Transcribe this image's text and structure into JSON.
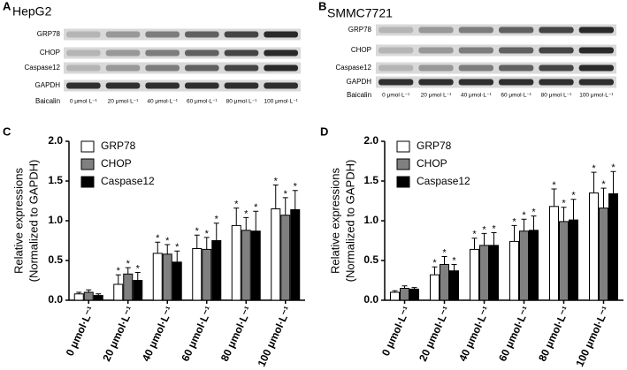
{
  "blots": [
    {
      "panel": "A",
      "cell_line": "HepG2",
      "proteins": [
        "GRP78",
        "CHOP",
        "Caspase12",
        "GAPDH"
      ],
      "treatment": "Baicalin",
      "doses": [
        "0 μmol·L⁻¹",
        "20 μmol·L⁻¹",
        "40 μmol·L⁻¹",
        "60 μmol·L⁻¹",
        "80 μmol·L⁻¹",
        "100 μmol·L⁻¹"
      ]
    },
    {
      "panel": "B",
      "cell_line": "SMMC7721",
      "proteins": [
        "GRP78",
        "CHOP",
        "Caspase12",
        "GAPDH"
      ],
      "treatment": "Baicalin",
      "doses": [
        "0 μmol·L⁻¹",
        "20 μmol·L⁻¹",
        "40 μmol·L⁻¹",
        "60 μmol·L⁻¹",
        "80 μmol·L⁻¹",
        "100 μmol·L⁻¹"
      ]
    }
  ],
  "chart_data": [
    {
      "type": "bar",
      "panel": "C",
      "ylabel": [
        "Relative expressions",
        "(Normalized to GAPDH)"
      ],
      "categories": [
        "0 μmol·L⁻¹",
        "20 μmol·L⁻¹",
        "40 μmol·L⁻¹",
        "60 μmol·L⁻¹",
        "80 μmol·L⁻¹",
        "100 μmol·L⁻¹"
      ],
      "ylim": [
        0,
        2
      ],
      "yticks": [
        {
          "value": 0,
          "label": "0.0"
        },
        0.5,
        {
          "value": 1,
          "label": "1.0"
        },
        1.5,
        {
          "value": 2,
          "label": "2.0"
        }
      ],
      "legend": "upper left",
      "series": [
        {
          "name": "GRP78",
          "color": "#ffffff",
          "values": [
            0.08,
            0.2,
            0.59,
            0.65,
            0.94,
            1.15
          ],
          "errors": [
            0.02,
            0.12,
            0.14,
            0.17,
            0.22,
            0.3
          ],
          "significance": [
            null,
            "*",
            "*",
            "*",
            "*",
            "*"
          ]
        },
        {
          "name": "CHOP",
          "color": "#808080",
          "values": [
            0.1,
            0.33,
            0.58,
            0.64,
            0.88,
            1.07
          ],
          "errors": [
            0.03,
            0.08,
            0.12,
            0.15,
            0.16,
            0.22
          ],
          "significance": [
            null,
            "*",
            "*",
            "*",
            "*",
            "*"
          ]
        },
        {
          "name": "Caspase12",
          "color": "#000000",
          "values": [
            0.06,
            0.25,
            0.48,
            0.75,
            0.87,
            1.14
          ],
          "errors": [
            0.02,
            0.1,
            0.14,
            0.22,
            0.25,
            0.24
          ],
          "significance": [
            null,
            "*",
            "*",
            "*",
            "*",
            "*"
          ]
        }
      ]
    },
    {
      "type": "bar",
      "panel": "D",
      "ylabel": [
        "Relative expressions",
        "(Normalized to GAPDH)"
      ],
      "categories": [
        "0 μmol·L⁻¹",
        "20 μmol·L⁻¹",
        "40 μmol·L⁻¹",
        "60 μmol·L⁻¹",
        "80 μmol·L⁻¹",
        "100 μmol·L⁻¹"
      ],
      "ylim": [
        0,
        2
      ],
      "yticks": [
        {
          "value": 0,
          "label": "0.0"
        },
        0.5,
        {
          "value": 1,
          "label": "1.0"
        },
        1.5,
        {
          "value": 2,
          "label": "2.0"
        }
      ],
      "legend": "upper left",
      "series": [
        {
          "name": "GRP78",
          "color": "#ffffff",
          "values": [
            0.1,
            0.32,
            0.64,
            0.74,
            1.18,
            1.35
          ],
          "errors": [
            0.02,
            0.1,
            0.14,
            0.2,
            0.22,
            0.26
          ],
          "significance": [
            null,
            "*",
            "*",
            "*",
            "*",
            "*"
          ]
        },
        {
          "name": "CHOP",
          "color": "#808080",
          "values": [
            0.15,
            0.45,
            0.69,
            0.87,
            0.99,
            1.16
          ],
          "errors": [
            0.03,
            0.1,
            0.15,
            0.15,
            0.18,
            0.25
          ],
          "significance": [
            null,
            "*",
            "*",
            "*",
            "*",
            "*"
          ]
        },
        {
          "name": "Caspase12",
          "color": "#000000",
          "values": [
            0.14,
            0.37,
            0.69,
            0.88,
            1.01,
            1.34
          ],
          "errors": [
            0.02,
            0.08,
            0.16,
            0.18,
            0.26,
            0.28
          ],
          "significance": [
            null,
            "*",
            "*",
            "*",
            "*",
            "*"
          ]
        }
      ]
    }
  ]
}
